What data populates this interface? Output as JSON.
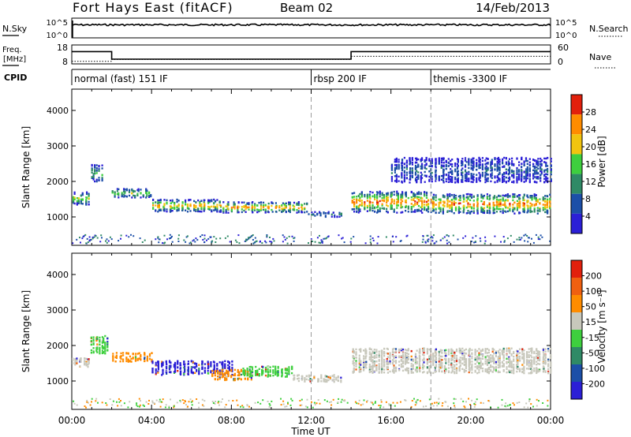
{
  "header": {
    "station": "Fort Hays East (fitACF)",
    "beam": "Beam 02",
    "date": "14/Feb/2013"
  },
  "sky_panel": {
    "left_label": "N.Sky",
    "right_label": "N.Search",
    "left_ticks": [
      "10^5",
      "10^0"
    ],
    "right_ticks": [
      "10^5",
      "10^0"
    ]
  },
  "freq_panel": {
    "left_label_1": "Freq.",
    "left_label_2": "[MHz]",
    "right_label": "Nave",
    "left_ticks": [
      "18",
      "8"
    ],
    "right_ticks": [
      "60",
      "0"
    ],
    "freq_steps": [
      {
        "t0": 0,
        "t1": 2,
        "value": 14.5
      },
      {
        "t0": 2,
        "t1": 14,
        "value": 10.5
      },
      {
        "t0": 14,
        "t1": 24,
        "value": 14.5
      }
    ],
    "nave_steps": [
      {
        "t0": 0,
        "t1": 2,
        "value": 8
      },
      {
        "t0": 2,
        "t1": 14,
        "value": 14
      },
      {
        "t0": 14,
        "t1": 24,
        "value": 24
      }
    ]
  },
  "cpid": {
    "label": "CPID",
    "entries": [
      {
        "t": 0,
        "text": "normal (fast) 151 IF"
      },
      {
        "t": 12,
        "text": "rbsp 200 IF"
      },
      {
        "t": 18,
        "text": "themis -3300 IF"
      }
    ]
  },
  "chart_data": [
    {
      "type": "heatmap",
      "name": "power",
      "ylabel": "Slant Range [km]",
      "ylim": [
        200,
        4600
      ],
      "yticks": [
        1000,
        2000,
        3000,
        4000
      ],
      "xlim": [
        0,
        24
      ],
      "colorbar_label": "Power [dB]",
      "colorbar_ticks": [
        "28",
        "24",
        "20",
        "16",
        "12",
        "8",
        "4"
      ],
      "colors": [
        "#2b1fd6",
        "#1c4fa8",
        "#2f8a66",
        "#3ecf3e",
        "#f1c40f",
        "#ff8c00",
        "#e2200c"
      ],
      "bands": [
        {
          "t0": 0.0,
          "t1": 0.9,
          "center": 1500,
          "width": 350,
          "level": 0.6
        },
        {
          "t0": 0.9,
          "t1": 1.5,
          "center": 2200,
          "width": 500,
          "level": 0.45
        },
        {
          "t0": 2.0,
          "t1": 4.0,
          "center": 1650,
          "width": 250,
          "level": 0.55
        },
        {
          "t0": 4.0,
          "t1": 7.5,
          "center": 1300,
          "width": 350,
          "level": 0.75
        },
        {
          "t0": 7.5,
          "t1": 11.8,
          "center": 1250,
          "width": 300,
          "level": 0.8
        },
        {
          "t0": 11.8,
          "t1": 13.5,
          "center": 1050,
          "width": 150,
          "level": 0.35
        },
        {
          "t0": 14.0,
          "t1": 18.0,
          "center": 1400,
          "width": 600,
          "level": 0.85
        },
        {
          "t0": 18.0,
          "t1": 24.0,
          "center": 1350,
          "width": 550,
          "level": 0.85
        },
        {
          "t0": 16.0,
          "t1": 24.0,
          "center": 2300,
          "width": 700,
          "level": 0.25
        }
      ]
    },
    {
      "type": "heatmap",
      "name": "velocity",
      "ylabel": "Slant Range [km]",
      "ylim": [
        200,
        4600
      ],
      "yticks": [
        1000,
        2000,
        3000,
        4000
      ],
      "xlim": [
        0,
        24
      ],
      "colorbar_label": "Velocity [m s⁻¹]",
      "colorbar_ticks": [
        "200",
        "100",
        "50",
        "15",
        "-15",
        "-50",
        "-100",
        "-200"
      ],
      "colors": [
        "#2b1fd6",
        "#1c4fa8",
        "#2f8a66",
        "#3ecf3e",
        "#c8c8bc",
        "#ff8c00",
        "#f06010",
        "#e2200c"
      ],
      "bands": [
        {
          "t0": 0.0,
          "t1": 0.9,
          "center": 1500,
          "width": 250,
          "kind": "gray"
        },
        {
          "t0": 0.9,
          "t1": 1.8,
          "center": 2000,
          "width": 500,
          "kind": "green"
        },
        {
          "t0": 2.0,
          "t1": 4.0,
          "center": 1650,
          "width": 250,
          "kind": "orange"
        },
        {
          "t0": 4.0,
          "t1": 8.0,
          "center": 1350,
          "width": 400,
          "kind": "blue"
        },
        {
          "t0": 7.0,
          "t1": 9.0,
          "center": 1150,
          "width": 300,
          "kind": "orange"
        },
        {
          "t0": 8.5,
          "t1": 11.0,
          "center": 1250,
          "width": 300,
          "kind": "green"
        },
        {
          "t0": 11.0,
          "t1": 13.5,
          "center": 1050,
          "width": 200,
          "kind": "gray"
        },
        {
          "t0": 14.0,
          "t1": 24.0,
          "center": 1550,
          "width": 700,
          "kind": "gray"
        }
      ]
    }
  ],
  "xaxis": {
    "label": "Time UT",
    "ticks": [
      "00:00",
      "04:00",
      "08:00",
      "12:00",
      "16:00",
      "20:00",
      "00:00"
    ]
  }
}
